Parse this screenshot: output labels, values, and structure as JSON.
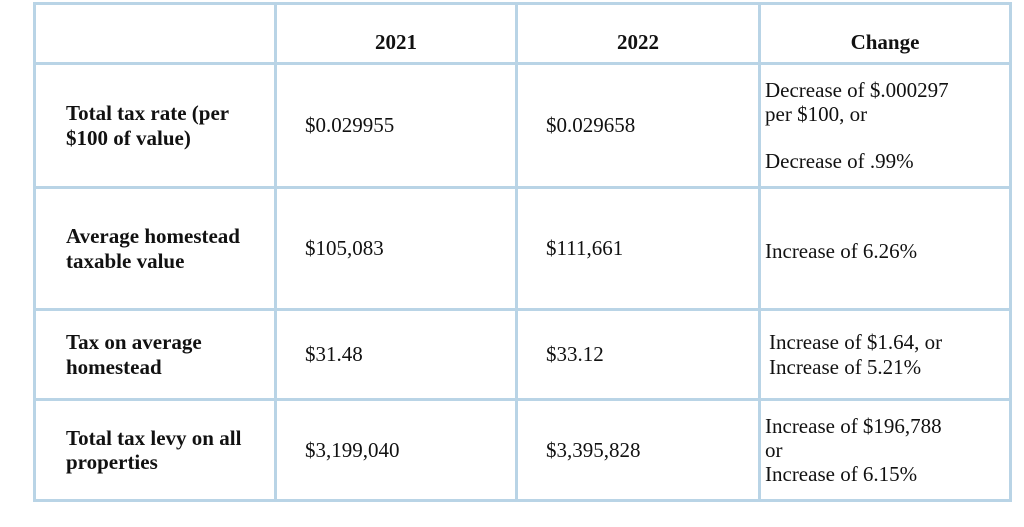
{
  "table": {
    "headers": [
      "",
      "2021",
      "2022",
      "Change"
    ],
    "rows": [
      {
        "label": "Total tax rate (per $100 of value)",
        "v2021": "$0.029955",
        "v2022": "$0.029658",
        "change": [
          "Decrease of $.000297",
          "per $100, or",
          "Decrease of .99%"
        ]
      },
      {
        "label": "Average homestead taxable value",
        "v2021": "$105,083",
        "v2022": "$111,661",
        "change": [
          "Increase of 6.26%"
        ]
      },
      {
        "label": "Tax on average homestead",
        "v2021": "$31.48",
        "v2022": "$33.12",
        "change": [
          "Increase of $1.64, or",
          "Increase of 5.21%"
        ]
      },
      {
        "label": "Total tax levy on all properties",
        "v2021": "$3,199,040",
        "v2022": "$3,395,828",
        "change": [
          "Increase of $196,788",
          "or",
          "Increase of 6.15%"
        ]
      }
    ]
  }
}
